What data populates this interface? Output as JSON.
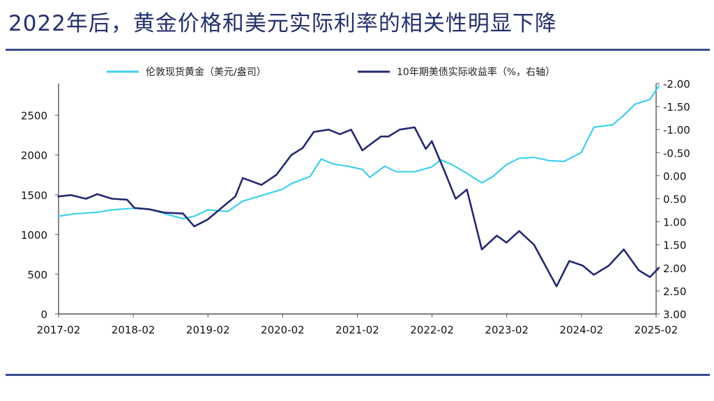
{
  "page": {
    "title": "2022年后，黄金价格和美元实际利率的相关性明显下降"
  },
  "colors": {
    "gold": "#3dd0ea",
    "yield": "#23286e",
    "rule": "#3b4a8c",
    "axis": "#555555"
  },
  "chart_data": {
    "type": "line",
    "title": "2022年后，黄金价格和美元实际利率的相关性明显下降",
    "x_tick_labels": [
      "2017-02",
      "2018-02",
      "2019-02",
      "2020-02",
      "2021-02",
      "2022-02",
      "2023-02",
      "2024-02",
      "2025-02"
    ],
    "y_left": {
      "range": [
        0,
        2900
      ],
      "ticks": [
        0,
        500,
        1000,
        1500,
        2000,
        2500
      ],
      "tick_labels": [
        "0",
        "500",
        "1000",
        "1500",
        "2000",
        "2500"
      ]
    },
    "y_right": {
      "range": [
        3.0,
        -2.0
      ],
      "reversed": true,
      "ticks": [
        -2.0,
        -1.5,
        -1.0,
        -0.5,
        0.0,
        0.5,
        1.0,
        1.5,
        2.0,
        2.5,
        3.0
      ],
      "tick_labels": [
        "-2.00",
        "-1.50",
        "-1.00",
        "-0.50",
        "0.00",
        "0.50",
        "1.00",
        "1.50",
        "2.00",
        "2.50",
        "3.00"
      ]
    },
    "grid": false,
    "legend_position": "top",
    "series": [
      {
        "name": "伦敦现货黄金（美元/盎司）",
        "axis": "left",
        "color": "#3dd0ea",
        "points": [
          [
            2017.08,
            1230
          ],
          [
            2017.3,
            1260
          ],
          [
            2017.6,
            1280
          ],
          [
            2017.8,
            1310
          ],
          [
            2018.08,
            1330
          ],
          [
            2018.3,
            1320
          ],
          [
            2018.55,
            1250
          ],
          [
            2018.75,
            1200
          ],
          [
            2018.9,
            1230
          ],
          [
            2019.08,
            1310
          ],
          [
            2019.35,
            1290
          ],
          [
            2019.55,
            1420
          ],
          [
            2019.8,
            1490
          ],
          [
            2020.08,
            1570
          ],
          [
            2020.2,
            1640
          ],
          [
            2020.45,
            1730
          ],
          [
            2020.6,
            1950
          ],
          [
            2020.75,
            1890
          ],
          [
            2020.95,
            1860
          ],
          [
            2021.15,
            1820
          ],
          [
            2021.25,
            1720
          ],
          [
            2021.45,
            1860
          ],
          [
            2021.6,
            1790
          ],
          [
            2021.85,
            1790
          ],
          [
            2022.08,
            1850
          ],
          [
            2022.2,
            1940
          ],
          [
            2022.35,
            1880
          ],
          [
            2022.55,
            1770
          ],
          [
            2022.75,
            1650
          ],
          [
            2022.9,
            1730
          ],
          [
            2023.08,
            1880
          ],
          [
            2023.25,
            1960
          ],
          [
            2023.45,
            1970
          ],
          [
            2023.65,
            1930
          ],
          [
            2023.85,
            1920
          ],
          [
            2024.08,
            2030
          ],
          [
            2024.25,
            2350
          ],
          [
            2024.5,
            2380
          ],
          [
            2024.65,
            2500
          ],
          [
            2024.8,
            2640
          ],
          [
            2025.0,
            2700
          ],
          [
            2025.12,
            2870
          ]
        ]
      },
      {
        "name": "10年期美债实际收益率（%，右轴）",
        "axis": "right",
        "color": "#23286e",
        "points": [
          [
            2017.08,
            0.45
          ],
          [
            2017.25,
            0.42
          ],
          [
            2017.45,
            0.5
          ],
          [
            2017.6,
            0.4
          ],
          [
            2017.8,
            0.5
          ],
          [
            2018.0,
            0.52
          ],
          [
            2018.1,
            0.7
          ],
          [
            2018.3,
            0.73
          ],
          [
            2018.5,
            0.8
          ],
          [
            2018.75,
            0.82
          ],
          [
            2018.9,
            1.1
          ],
          [
            2019.08,
            0.95
          ],
          [
            2019.3,
            0.65
          ],
          [
            2019.45,
            0.45
          ],
          [
            2019.55,
            0.05
          ],
          [
            2019.8,
            0.2
          ],
          [
            2020.0,
            -0.02
          ],
          [
            2020.2,
            -0.45
          ],
          [
            2020.35,
            -0.6
          ],
          [
            2020.5,
            -0.95
          ],
          [
            2020.7,
            -1.0
          ],
          [
            2020.85,
            -0.9
          ],
          [
            2021.0,
            -1.0
          ],
          [
            2021.15,
            -0.55
          ],
          [
            2021.4,
            -0.85
          ],
          [
            2021.5,
            -0.85
          ],
          [
            2021.65,
            -1.0
          ],
          [
            2021.85,
            -1.05
          ],
          [
            2022.0,
            -0.58
          ],
          [
            2022.08,
            -0.75
          ],
          [
            2022.25,
            -0.1
          ],
          [
            2022.4,
            0.5
          ],
          [
            2022.55,
            0.3
          ],
          [
            2022.75,
            1.6
          ],
          [
            2022.95,
            1.3
          ],
          [
            2023.08,
            1.45
          ],
          [
            2023.25,
            1.2
          ],
          [
            2023.45,
            1.5
          ],
          [
            2023.6,
            1.95
          ],
          [
            2023.75,
            2.4
          ],
          [
            2023.92,
            1.85
          ],
          [
            2024.1,
            1.95
          ],
          [
            2024.25,
            2.15
          ],
          [
            2024.45,
            1.95
          ],
          [
            2024.65,
            1.6
          ],
          [
            2024.85,
            2.05
          ],
          [
            2025.0,
            2.2
          ],
          [
            2025.12,
            2.0
          ]
        ]
      }
    ]
  }
}
